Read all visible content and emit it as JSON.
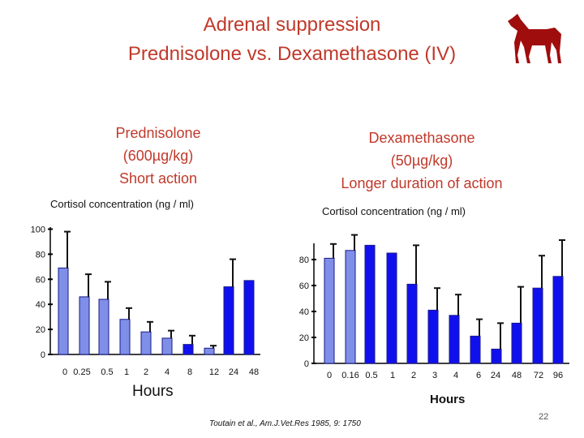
{
  "slide": {
    "title_line1": "Adrenal suppression",
    "title_line2": "Prednisolone  vs. Dexamethasone (IV)",
    "page_number": "22",
    "citation": "Toutain et al., Am.J.Vet.Res 1985, 9: 1750",
    "horse_icon": "horse-icon",
    "colors": {
      "title": "#c0392b",
      "bar_fill": "#1010ee",
      "bar_light": "#7f8fe8"
    }
  },
  "left": {
    "heading": [
      "Prednisolone",
      "(600µg/kg)",
      "Short action"
    ],
    "ylabel": "Cortisol concentration (ng / ml)",
    "xlabel": "Hours"
  },
  "right": {
    "heading": [
      "Dexamethasone",
      "(50µg/kg)",
      "Longer duration of action"
    ],
    "ylabel": "Cortisol concentration (ng / ml)",
    "xlabel": "Hours"
  },
  "chart_data": [
    {
      "type": "bar",
      "categories": [
        "0",
        "0.25",
        "0.5",
        "1",
        "2",
        "4",
        "8",
        "12",
        "24",
        "48"
      ],
      "values": [
        69,
        46,
        44,
        28,
        18,
        13,
        8,
        5,
        54,
        59
      ],
      "errors": [
        29,
        18,
        14,
        9,
        8,
        6,
        7,
        2,
        22,
        0
      ],
      "styles": [
        "light",
        "light",
        "light",
        "light",
        "light",
        "light",
        "solid",
        "light",
        "solid",
        "solid"
      ],
      "yticks": [
        0,
        20,
        40,
        60,
        80,
        100
      ],
      "ylim": [
        0,
        100
      ],
      "ylabel": "Cortisol concentration (ng / ml)",
      "xlabel": "Hours",
      "grid": false
    },
    {
      "type": "bar",
      "categories": [
        "0",
        "0.16",
        "0.5",
        "1",
        "2",
        "3",
        "4",
        "6",
        "24",
        "48",
        "72",
        "96"
      ],
      "values": [
        81,
        87,
        91,
        85,
        61,
        41,
        37,
        21,
        11,
        31,
        58,
        67
      ],
      "errors": [
        11,
        12,
        0,
        0,
        30,
        17,
        16,
        13,
        20,
        28,
        25,
        28
      ],
      "styles": [
        "light",
        "light",
        "solid",
        "solid",
        "solid",
        "solid",
        "solid",
        "solid",
        "solid",
        "solid",
        "solid",
        "solid"
      ],
      "yticks": [
        0,
        20,
        40,
        60,
        80
      ],
      "ylim": [
        0,
        100
      ],
      "ylabel": "Cortisol concentration (ng / ml)",
      "xlabel": "Hours",
      "grid": false
    }
  ]
}
